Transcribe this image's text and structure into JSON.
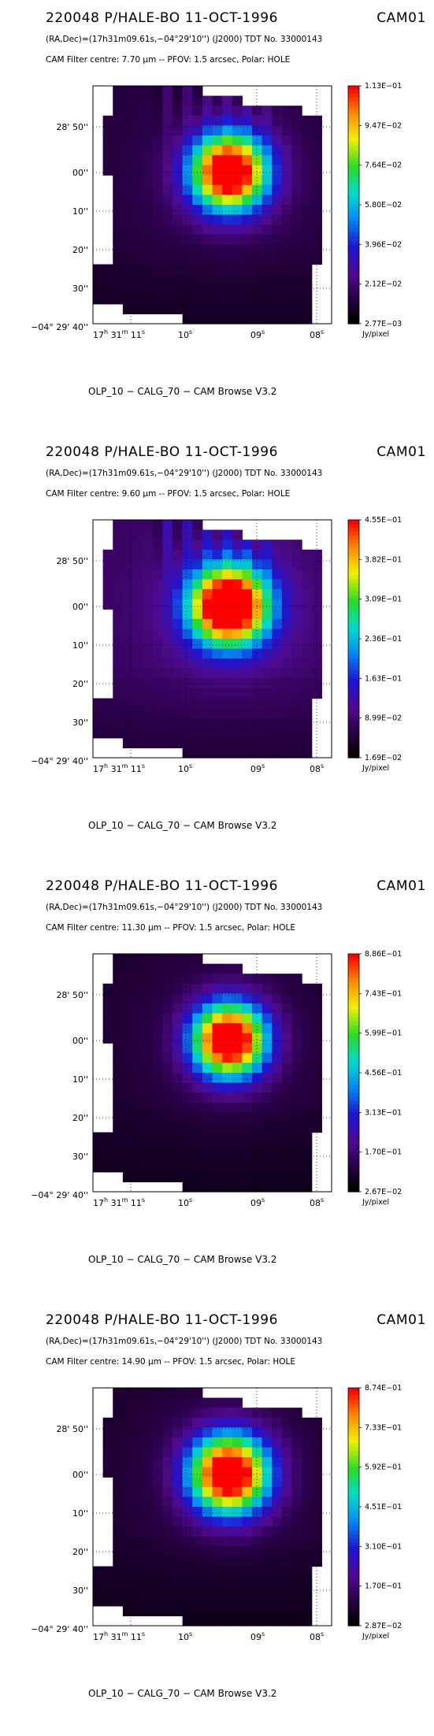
{
  "common": {
    "header_left": "220048  P/HALE-BO  11-OCT-1996",
    "header_right": "CAM01",
    "coords_line": "(RA,Dec)=(17h31m09.61s,−04°29'10'') (J2000) TDT No. 33000143",
    "footer": "OLP_10    − CALG_70    − CAM Browse V3.2",
    "cbar_unit": "Jy/pixel",
    "dec_ticks": [
      "28' 50''",
      "00''",
      "10''",
      "20''",
      "30''"
    ],
    "dec_corner": "−04° 29' 40''",
    "ra_major": [
      "17",
      "31",
      "11",
      "10",
      "09",
      "08"
    ],
    "ra_units": [
      "h",
      "m",
      "s",
      "s",
      "s",
      "s"
    ]
  },
  "chart_data": [
    {
      "type": "heatmap",
      "filter_line": "CAM  Filter  centre:  7.70 µm  --   PFOV:  1.5 arcsec, Polar: HOLE",
      "filter_centre_um": 7.7,
      "colorbar_ticks": [
        "1.13E−01",
        "9.47E−02",
        "7.64E−02",
        "5.80E−02",
        "3.96E−02",
        "2.12E−02",
        "2.77E−03"
      ],
      "vmin": 0.00277,
      "vmax": 0.113,
      "source_peak": 0.12,
      "source_sigma_px": 2.7,
      "background_level": 0.012,
      "stripes": true
    },
    {
      "type": "heatmap",
      "filter_line": "CAM  Filter  centre:  9.60 µm  --   PFOV:  1.5 arcsec, Polar: HOLE",
      "filter_centre_um": 9.6,
      "colorbar_ticks": [
        "4.55E−01",
        "3.82E−01",
        "3.09E−01",
        "2.36E−01",
        "1.63E−01",
        "8.99E−02",
        "1.69E−02"
      ],
      "vmin": 0.0169,
      "vmax": 0.455,
      "source_peak": 0.5,
      "source_sigma_px": 2.7,
      "background_level": 0.075,
      "stripes": true
    },
    {
      "type": "heatmap",
      "filter_line": "CAM  Filter  centre: 11.30 µm  --   PFOV:  1.5 arcsec, Polar: HOLE",
      "filter_centre_um": 11.3,
      "colorbar_ticks": [
        "8.86E−01",
        "7.43E−01",
        "5.99E−01",
        "4.56E−01",
        "3.13E−01",
        "1.70E−01",
        "2.67E−02"
      ],
      "vmin": 0.0267,
      "vmax": 0.886,
      "source_peak": 0.95,
      "source_sigma_px": 2.6,
      "background_level": 0.085,
      "stripes": false
    },
    {
      "type": "heatmap",
      "filter_line": "CAM  Filter  centre: 14.90 µm  --   PFOV:  1.5 arcsec, Polar: HOLE",
      "filter_centre_um": 14.9,
      "colorbar_ticks": [
        "8.74E−01",
        "7.33E−01",
        "5.92E−01",
        "4.51E−01",
        "3.10E−01",
        "1.70E−01",
        "2.87E−02"
      ],
      "vmin": 0.0287,
      "vmax": 0.874,
      "source_peak": 0.92,
      "source_sigma_px": 2.8,
      "background_level": 0.085,
      "stripes": false
    }
  ]
}
